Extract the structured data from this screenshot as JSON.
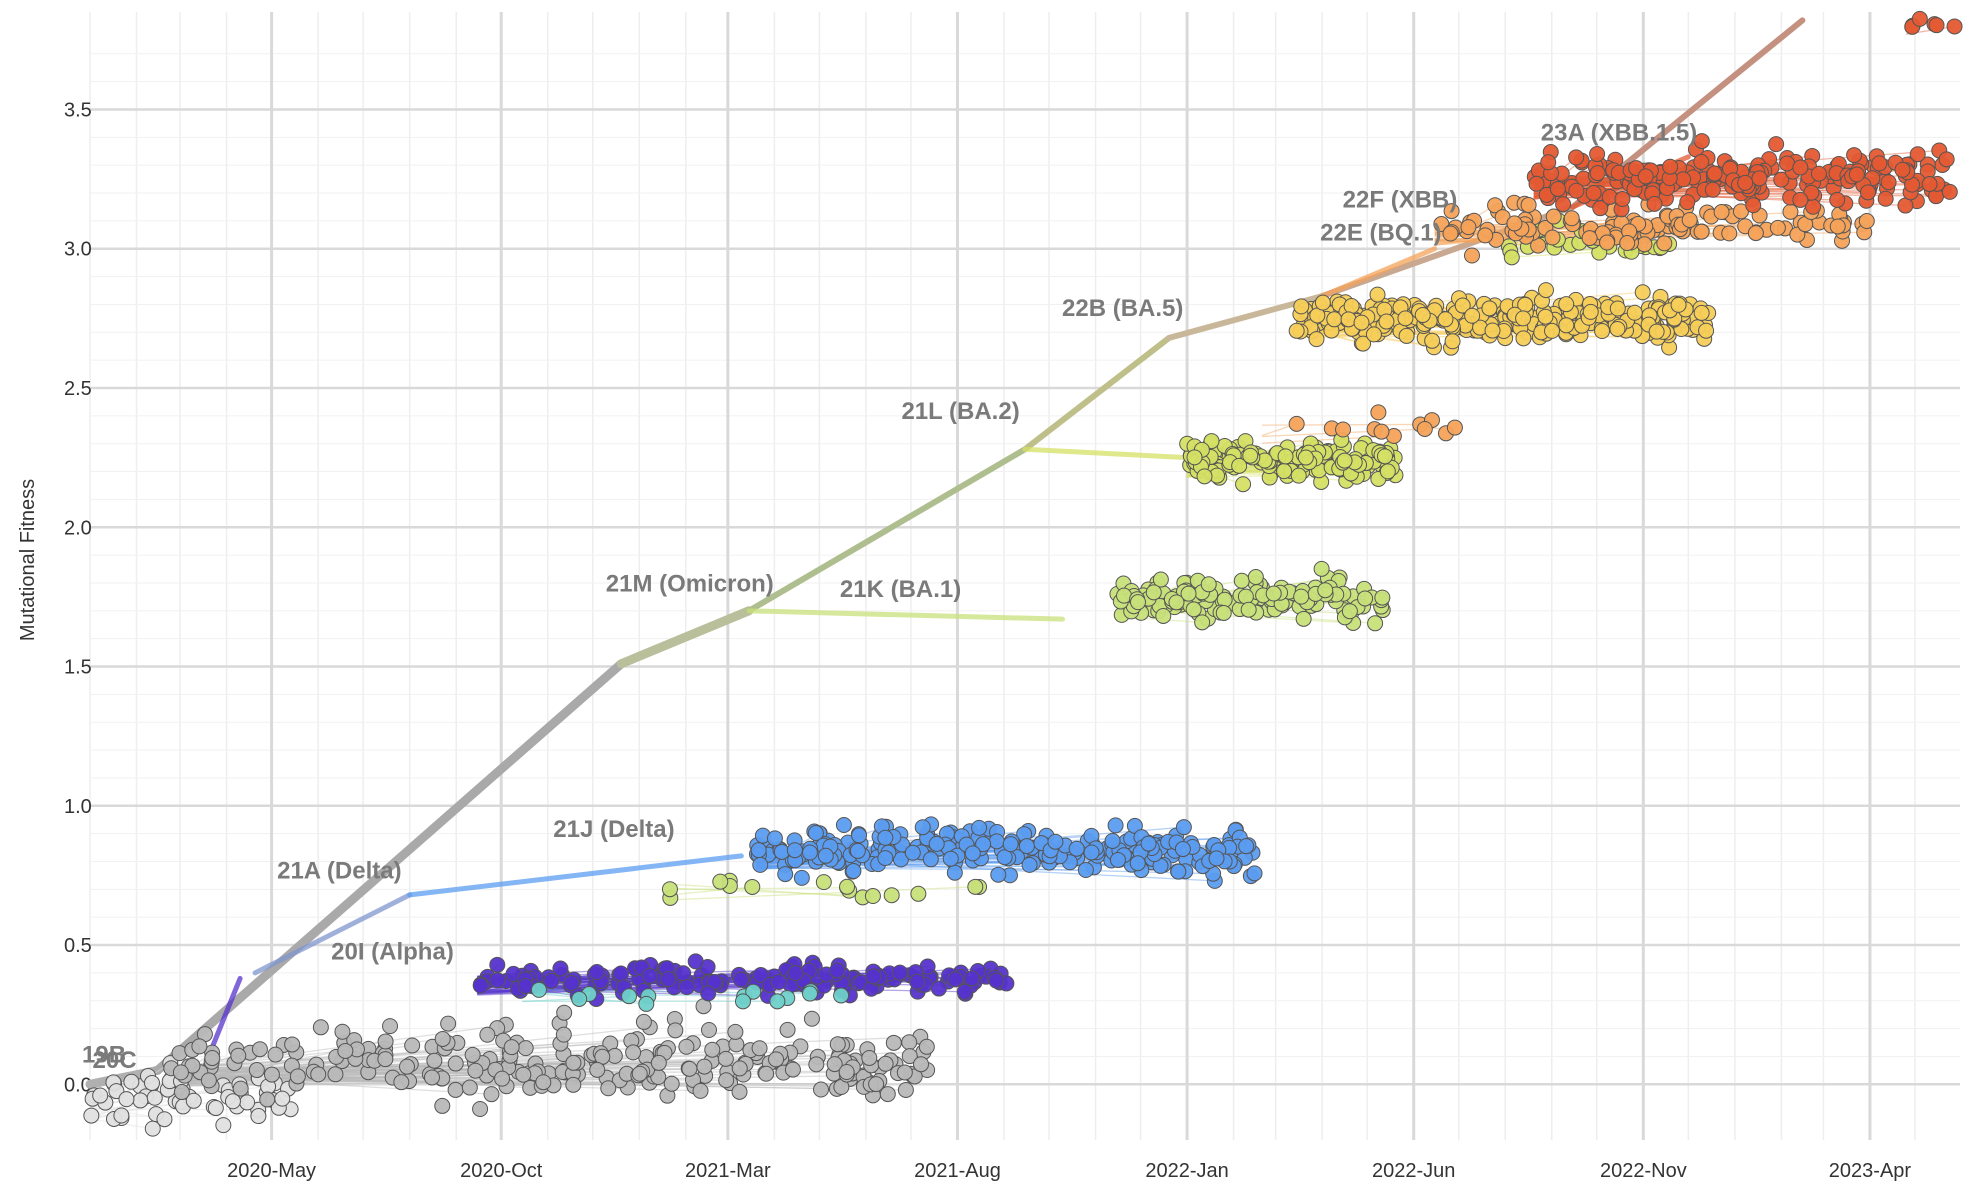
{
  "chart_data": {
    "type": "scatter",
    "ylabel": "Mutational Fitness",
    "xlabel": "",
    "ylim": [
      -0.2,
      3.85
    ],
    "xlim": [
      "2020-01-01",
      "2023-05-31"
    ],
    "yticks": [
      "0.0",
      "0.5",
      "1.0",
      "1.5",
      "2.0",
      "2.5",
      "3.0",
      "3.5"
    ],
    "xticks": [
      "2020-May",
      "2020-Oct",
      "2021-Mar",
      "2021-Aug",
      "2022-Jan",
      "2022-Jun",
      "2022-Nov",
      "2023-Apr"
    ],
    "grid": true,
    "colors": {
      "19A": "#e0e0e0",
      "20B": "#b8b8b8",
      "20I": "#5533cc",
      "21A": "#7f95cf",
      "21J": "#5b9cf0",
      "21M": "#a8a8a8",
      "21K": "#c8e07a",
      "21L": "#d4e064",
      "22B": "#f6cd58",
      "22E": "#f5a35a",
      "22F": "#f08a45",
      "23A": "#e45a33",
      "other": "#6fd0c9"
    },
    "clade_labels": [
      {
        "text": "19B",
        "x": "2020-01-01",
        "y": 0.05
      },
      {
        "text": "20C",
        "x": "2020-01-08",
        "y": 0.03
      },
      {
        "text": "20I (Alpha)",
        "x": "2020-06-15",
        "y": 0.42
      },
      {
        "text": "21A (Delta)",
        "x": "2020-05-10",
        "y": 0.71
      },
      {
        "text": "21J (Delta)",
        "x": "2020-11-10",
        "y": 0.86
      },
      {
        "text": "21M (Omicron)",
        "x": "2020-12-15",
        "y": 1.74
      },
      {
        "text": "21K (BA.1)",
        "x": "2021-05-20",
        "y": 1.72
      },
      {
        "text": "21L (BA.2)",
        "x": "2021-06-30",
        "y": 2.36
      },
      {
        "text": "22B (BA.5)",
        "x": "2021-10-15",
        "y": 2.73
      },
      {
        "text": "22E (BQ.1)",
        "x": "2022-04-05",
        "y": 3.0
      },
      {
        "text": "22F (XBB)",
        "x": "2022-04-20",
        "y": 3.12
      },
      {
        "text": "23A (XBB.1.5)",
        "x": "2022-08-30",
        "y": 3.36
      }
    ],
    "backbone": [
      {
        "x": "2020-01-01",
        "y": 0.0
      },
      {
        "x": "2020-02-15",
        "y": 0.05
      },
      {
        "x": "2020-12-20",
        "y": 1.51
      },
      {
        "x": "2021-03-15",
        "y": 1.7
      },
      {
        "x": "2021-09-15",
        "y": 2.28
      },
      {
        "x": "2021-12-20",
        "y": 2.68
      },
      {
        "x": "2022-04-01",
        "y": 2.83
      },
      {
        "x": "2022-09-15",
        "y": 3.15
      },
      {
        "x": "2023-02-15",
        "y": 3.82
      }
    ],
    "branches": [
      {
        "clade": "20I",
        "from": {
          "x": "2020-03-20",
          "y": 0.1
        },
        "to": {
          "x": "2020-04-10",
          "y": 0.38
        }
      },
      {
        "clade": "21A",
        "from": {
          "x": "2020-04-20",
          "y": 0.4
        },
        "to": {
          "x": "2020-08-01",
          "y": 0.68
        }
      },
      {
        "clade": "21J",
        "from": {
          "x": "2020-08-01",
          "y": 0.68
        },
        "to": {
          "x": "2021-03-10",
          "y": 0.82
        }
      },
      {
        "clade": "21K",
        "from": {
          "x": "2021-03-15",
          "y": 1.7
        },
        "to": {
          "x": "2021-10-10",
          "y": 1.67
        }
      },
      {
        "clade": "21L",
        "from": {
          "x": "2021-09-15",
          "y": 2.28
        },
        "to": {
          "x": "2022-01-01",
          "y": 2.25
        }
      },
      {
        "clade": "22E",
        "from": {
          "x": "2022-04-01",
          "y": 2.83
        },
        "to": {
          "x": "2022-06-15",
          "y": 3.0
        }
      },
      {
        "clade": "23A",
        "from": {
          "x": "2022-09-15",
          "y": 3.15
        },
        "to": {
          "x": "2022-12-01",
          "y": 3.33
        }
      }
    ],
    "clusters": [
      {
        "clade": "19A",
        "x_range": [
          "2020-01-01",
          "2020-05-15"
        ],
        "y_center": -0.05,
        "y_spread": 0.12,
        "count": 60
      },
      {
        "clade": "20B",
        "x_range": [
          "2020-02-20",
          "2021-07-15"
        ],
        "y_center": 0.08,
        "y_spread": 0.14,
        "count": 260
      },
      {
        "clade": "20I",
        "x_range": [
          "2020-09-15",
          "2021-09-10"
        ],
        "y_center": 0.38,
        "y_spread": 0.06,
        "count": 170
      },
      {
        "clade": "other",
        "x_range": [
          "2020-10-15",
          "2021-08-20"
        ],
        "y_center": 0.32,
        "y_spread": 0.03,
        "count": 14
      },
      {
        "clade": "21K",
        "x_range": [
          "2021-01-20",
          "2021-08-20"
        ],
        "y_center": 0.7,
        "y_spread": 0.04,
        "count": 16
      },
      {
        "clade": "21J",
        "x_range": [
          "2021-03-20",
          "2022-02-15"
        ],
        "y_center": 0.84,
        "y_spread": 0.09,
        "count": 260
      },
      {
        "clade": "21K",
        "x_range": [
          "2021-11-15",
          "2022-05-15"
        ],
        "y_center": 1.74,
        "y_spread": 0.08,
        "count": 140
      },
      {
        "clade": "21L",
        "x_range": [
          "2022-01-01",
          "2022-05-20"
        ],
        "y_center": 2.24,
        "y_spread": 0.07,
        "count": 160
      },
      {
        "clade": "22E",
        "x_range": [
          "2022-02-20",
          "2022-06-30"
        ],
        "y_center": 2.36,
        "y_spread": 0.06,
        "count": 12
      },
      {
        "clade": "22B",
        "x_range": [
          "2022-03-15",
          "2022-12-15"
        ],
        "y_center": 2.75,
        "y_spread": 0.08,
        "count": 300
      },
      {
        "clade": "21L",
        "x_range": [
          "2022-08-01",
          "2022-11-30"
        ],
        "y_center": 3.02,
        "y_spread": 0.06,
        "count": 30
      },
      {
        "clade": "22E",
        "x_range": [
          "2022-06-15",
          "2023-03-30"
        ],
        "y_center": 3.08,
        "y_spread": 0.08,
        "count": 120
      },
      {
        "clade": "23A",
        "x_range": [
          "2022-08-20",
          "2023-05-25"
        ],
        "y_center": 3.25,
        "y_spread": 0.1,
        "count": 220
      },
      {
        "clade": "23A",
        "x_range": [
          "2023-04-25",
          "2023-05-30"
        ],
        "y_center": 3.81,
        "y_spread": 0.02,
        "count": 6
      }
    ]
  }
}
